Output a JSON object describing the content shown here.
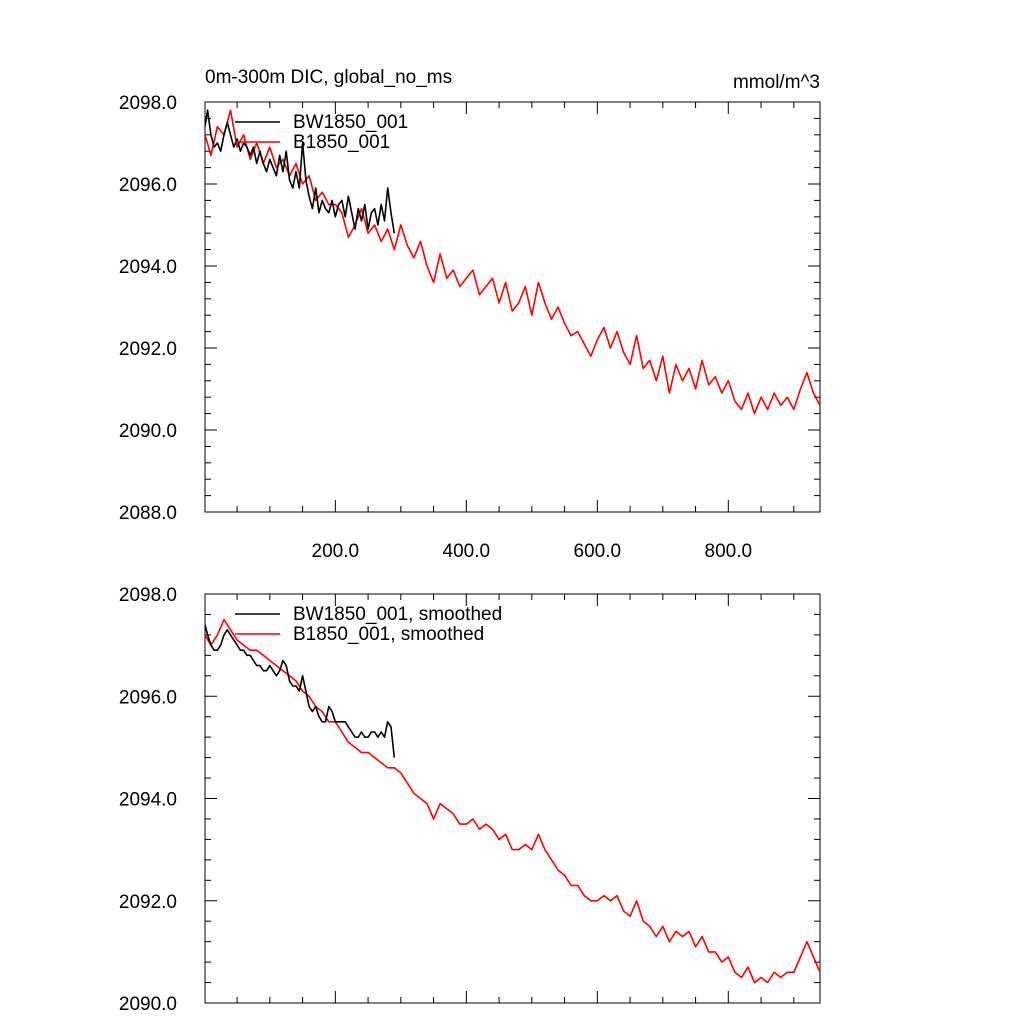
{
  "figure": {
    "title": "0m-300m DIC, global_no_ms",
    "units": "mmol/m^3"
  },
  "chart_data": [
    {
      "type": "line",
      "title": "0m-300m DIC, global_no_ms",
      "units": "mmol/m^3",
      "xlabel": "",
      "ylabel": "",
      "xlim": [
        1,
        940
      ],
      "ylim": [
        2088.0,
        2098.0
      ],
      "xticks": [
        200,
        400,
        600,
        800
      ],
      "xtick_labels": [
        "200.0",
        "400.0",
        "600.0",
        "800.0"
      ],
      "yticks": [
        2088,
        2090,
        2092,
        2094,
        2096,
        2098
      ],
      "ytick_labels": [
        "2088.0",
        "2090.0",
        "2092.0",
        "2094.0",
        "2096.0",
        "2098.0"
      ],
      "legend_position": "top-left",
      "series": [
        {
          "name": "BW1850_001",
          "color": "#000000",
          "x": [
            1,
            5,
            10,
            15,
            20,
            25,
            30,
            35,
            40,
            45,
            50,
            55,
            60,
            65,
            70,
            75,
            80,
            85,
            90,
            95,
            100,
            105,
            110,
            115,
            120,
            125,
            130,
            135,
            140,
            145,
            150,
            155,
            160,
            165,
            170,
            175,
            180,
            185,
            190,
            195,
            200,
            205,
            210,
            215,
            220,
            225,
            230,
            235,
            240,
            245,
            250,
            255,
            260,
            265,
            270,
            275,
            280,
            285,
            290
          ],
          "values": [
            2097.4,
            2097.8,
            2097.2,
            2096.9,
            2097.0,
            2096.8,
            2097.2,
            2097.5,
            2097.2,
            2096.9,
            2097.1,
            2096.8,
            2097.0,
            2096.9,
            2096.7,
            2096.9,
            2096.5,
            2096.8,
            2096.5,
            2096.3,
            2096.6,
            2096.4,
            2096.2,
            2096.7,
            2096.3,
            2096.8,
            2096.1,
            2095.9,
            2096.3,
            2095.9,
            2097.0,
            2096.1,
            2095.7,
            2095.4,
            2095.9,
            2095.3,
            2095.6,
            2095.4,
            2095.3,
            2095.6,
            2095.2,
            2095.5,
            2095.6,
            2095.2,
            2095.7,
            2095.3,
            2094.9,
            2095.4,
            2095.1,
            2095.5,
            2094.9,
            2095.3,
            2095.4,
            2095.0,
            2095.5,
            2095.1,
            2095.9,
            2095.3,
            2094.8
          ]
        },
        {
          "name": "B1850_001",
          "color": "#ff0000",
          "x": [
            1,
            10,
            20,
            30,
            40,
            50,
            60,
            70,
            80,
            90,
            100,
            110,
            120,
            130,
            140,
            150,
            160,
            170,
            180,
            190,
            200,
            210,
            220,
            230,
            240,
            250,
            260,
            270,
            280,
            290,
            300,
            310,
            320,
            330,
            340,
            350,
            360,
            370,
            380,
            390,
            400,
            410,
            420,
            430,
            440,
            450,
            460,
            470,
            480,
            490,
            500,
            510,
            520,
            530,
            540,
            550,
            560,
            570,
            580,
            590,
            600,
            610,
            620,
            630,
            640,
            650,
            660,
            670,
            680,
            690,
            700,
            710,
            720,
            730,
            740,
            750,
            760,
            770,
            780,
            790,
            800,
            810,
            820,
            830,
            840,
            850,
            860,
            870,
            880,
            890,
            900,
            910,
            920,
            930,
            940
          ],
          "values": [
            2097.2,
            2096.7,
            2097.4,
            2097.2,
            2097.8,
            2096.9,
            2097.2,
            2096.6,
            2097.0,
            2096.5,
            2096.9,
            2096.4,
            2096.6,
            2096.2,
            2096.5,
            2096.0,
            2096.2,
            2095.6,
            2095.8,
            2095.5,
            2095.5,
            2095.3,
            2094.7,
            2095.0,
            2095.4,
            2094.8,
            2095.0,
            2094.6,
            2094.9,
            2094.4,
            2095.0,
            2094.5,
            2094.2,
            2094.6,
            2094.0,
            2093.6,
            2094.3,
            2093.7,
            2093.9,
            2093.5,
            2093.7,
            2093.9,
            2093.3,
            2093.5,
            2093.7,
            2093.1,
            2093.6,
            2092.9,
            2093.1,
            2093.5,
            2092.8,
            2093.6,
            2093.1,
            2092.7,
            2093.0,
            2092.6,
            2092.3,
            2092.4,
            2092.1,
            2091.8,
            2092.2,
            2092.5,
            2092.0,
            2092.4,
            2091.9,
            2091.6,
            2092.3,
            2091.5,
            2091.7,
            2091.2,
            2091.8,
            2090.9,
            2091.6,
            2091.2,
            2091.5,
            2091.0,
            2091.7,
            2091.1,
            2091.3,
            2090.9,
            2091.2,
            2090.7,
            2090.5,
            2090.9,
            2090.4,
            2090.8,
            2090.5,
            2090.9,
            2090.6,
            2090.8,
            2090.5,
            2091.0,
            2091.4,
            2090.9,
            2090.6
          ]
        }
      ]
    },
    {
      "type": "line",
      "title": "",
      "xlabel": "",
      "ylabel": "",
      "xlim": [
        1,
        940
      ],
      "ylim": [
        2090.0,
        2098.0
      ],
      "xticks": [
        200,
        400,
        600,
        800
      ],
      "xtick_labels": [
        "",
        "",
        "",
        ""
      ],
      "yticks": [
        2090,
        2092,
        2094,
        2096,
        2098
      ],
      "ytick_labels": [
        "2090.0",
        "2092.0",
        "2094.0",
        "2096.0",
        "2098.0"
      ],
      "legend_position": "top-left",
      "series": [
        {
          "name": "BW1850_001, smoothed",
          "color": "#000000",
          "x": [
            1,
            5,
            10,
            15,
            20,
            25,
            30,
            35,
            40,
            45,
            50,
            55,
            60,
            65,
            70,
            75,
            80,
            85,
            90,
            95,
            100,
            105,
            110,
            115,
            120,
            125,
            130,
            135,
            140,
            145,
            150,
            155,
            160,
            165,
            170,
            175,
            180,
            185,
            190,
            195,
            200,
            205,
            210,
            215,
            220,
            225,
            230,
            235,
            240,
            245,
            250,
            255,
            260,
            265,
            270,
            275,
            280,
            285,
            290
          ],
          "values": [
            2097.4,
            2097.2,
            2097.0,
            2096.9,
            2096.9,
            2097.0,
            2097.2,
            2097.3,
            2097.2,
            2097.1,
            2097.0,
            2096.9,
            2096.9,
            2096.8,
            2096.8,
            2096.7,
            2096.6,
            2096.6,
            2096.5,
            2096.5,
            2096.6,
            2096.5,
            2096.4,
            2096.5,
            2096.7,
            2096.6,
            2096.3,
            2096.2,
            2096.2,
            2096.1,
            2096.4,
            2096.1,
            2095.8,
            2095.7,
            2095.8,
            2095.6,
            2095.5,
            2095.5,
            2095.8,
            2095.7,
            2095.5,
            2095.5,
            2095.5,
            2095.5,
            2095.4,
            2095.3,
            2095.2,
            2095.2,
            2095.3,
            2095.2,
            2095.2,
            2095.3,
            2095.3,
            2095.2,
            2095.3,
            2095.2,
            2095.5,
            2095.4,
            2094.8
          ]
        },
        {
          "name": "B1850_001, smoothed",
          "color": "#ff0000",
          "x": [
            1,
            10,
            20,
            30,
            40,
            50,
            60,
            70,
            80,
            90,
            100,
            110,
            120,
            130,
            140,
            150,
            160,
            170,
            180,
            190,
            200,
            210,
            220,
            230,
            240,
            250,
            260,
            270,
            280,
            290,
            300,
            310,
            320,
            330,
            340,
            350,
            360,
            370,
            380,
            390,
            400,
            410,
            420,
            430,
            440,
            450,
            460,
            470,
            480,
            490,
            500,
            510,
            520,
            530,
            540,
            550,
            560,
            570,
            580,
            590,
            600,
            610,
            620,
            630,
            640,
            650,
            660,
            670,
            680,
            690,
            700,
            710,
            720,
            730,
            740,
            750,
            760,
            770,
            780,
            790,
            800,
            810,
            820,
            830,
            840,
            850,
            860,
            870,
            880,
            890,
            900,
            910,
            920,
            930,
            940
          ],
          "values": [
            2097.2,
            2097.0,
            2097.2,
            2097.5,
            2097.3,
            2097.1,
            2097.0,
            2096.9,
            2096.9,
            2096.8,
            2096.7,
            2096.6,
            2096.5,
            2096.4,
            2096.3,
            2096.1,
            2096.0,
            2095.8,
            2095.7,
            2095.5,
            2095.5,
            2095.3,
            2095.1,
            2095.0,
            2094.9,
            2094.9,
            2094.8,
            2094.7,
            2094.6,
            2094.6,
            2094.5,
            2094.3,
            2094.1,
            2094.0,
            2093.9,
            2093.6,
            2093.9,
            2093.8,
            2093.7,
            2093.5,
            2093.5,
            2093.6,
            2093.4,
            2093.5,
            2093.4,
            2093.2,
            2093.3,
            2093.0,
            2093.0,
            2093.1,
            2093.0,
            2093.3,
            2093.0,
            2092.8,
            2092.6,
            2092.5,
            2092.3,
            2092.3,
            2092.1,
            2092.0,
            2092.0,
            2092.1,
            2092.0,
            2092.1,
            2091.8,
            2091.7,
            2092.0,
            2091.6,
            2091.5,
            2091.3,
            2091.5,
            2091.2,
            2091.4,
            2091.3,
            2091.4,
            2091.1,
            2091.3,
            2091.0,
            2091.0,
            2090.8,
            2090.9,
            2090.6,
            2090.5,
            2090.7,
            2090.4,
            2090.5,
            2090.4,
            2090.6,
            2090.5,
            2090.6,
            2090.6,
            2090.9,
            2091.2,
            2090.9,
            2090.6
          ]
        }
      ]
    }
  ]
}
